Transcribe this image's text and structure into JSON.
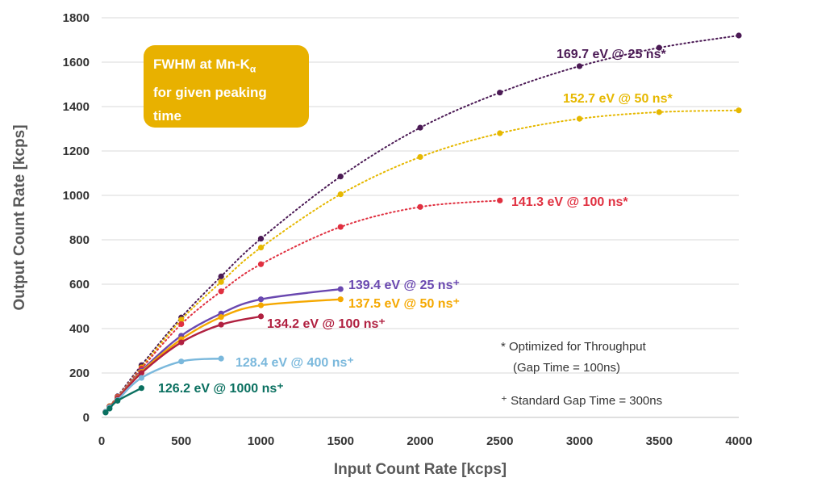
{
  "infobox": {
    "line1": "FWHM at Mn-K",
    "line1_sub": "α",
    "line2": "for given peaking",
    "line3": "time"
  },
  "notes": {
    "optimized": "* Optimized for Throughput",
    "gap_100": "(Gap Time = 100ns)",
    "standard": "⁺ Standard Gap Time = 300ns"
  },
  "chart_data": {
    "type": "line",
    "xlabel": "Input Count Rate [kcps]",
    "ylabel": "Output Count Rate [kcps]",
    "xlim": [
      0,
      4000
    ],
    "ylim": [
      0,
      1800
    ],
    "xticks": [
      0,
      500,
      1000,
      1500,
      2000,
      2500,
      3000,
      3500,
      4000
    ],
    "yticks": [
      0,
      200,
      400,
      600,
      800,
      1000,
      1200,
      1400,
      1600,
      1800
    ],
    "grid": "horizontal",
    "series": [
      {
        "name": "169.7 eV @ 25 ns*",
        "color": "#4b1a55",
        "style": "dotted",
        "x": [
          25,
          50,
          100,
          250,
          500,
          750,
          1000,
          1500,
          2000,
          2500,
          3000,
          3500,
          4000
        ],
        "y": [
          25,
          50,
          95,
          235,
          450,
          635,
          805,
          1085,
          1305,
          1463,
          1582,
          1665,
          1720
        ]
      },
      {
        "name": "152.7 eV @ 50 ns*",
        "color": "#e6b800",
        "style": "dotted",
        "x": [
          25,
          50,
          100,
          250,
          500,
          750,
          1000,
          1500,
          2000,
          2500,
          3000,
          3500,
          4000
        ],
        "y": [
          25,
          50,
          93,
          225,
          440,
          610,
          765,
          1005,
          1173,
          1280,
          1345,
          1375,
          1383
        ]
      },
      {
        "name": "141.3 eV @ 100 ns*",
        "color": "#e03040",
        "style": "dotted",
        "x": [
          25,
          50,
          100,
          250,
          500,
          750,
          1000,
          1500,
          2000,
          2500
        ],
        "y": [
          25,
          50,
          92,
          220,
          420,
          568,
          690,
          858,
          948,
          977
        ]
      },
      {
        "name": "139.4 eV @ 25 ns⁺",
        "color": "#6a48b0",
        "style": "solid",
        "x": [
          25,
          50,
          100,
          250,
          500,
          750,
          1000,
          1500
        ],
        "y": [
          25,
          50,
          88,
          210,
          368,
          468,
          532,
          578
        ]
      },
      {
        "name": "137.5 eV @ 50 ns⁺",
        "color": "#f5a800",
        "style": "solid",
        "x": [
          25,
          50,
          100,
          250,
          500,
          750,
          1000,
          1500
        ],
        "y": [
          25,
          50,
          86,
          205,
          352,
          452,
          505,
          532
        ]
      },
      {
        "name": "134.2 eV @ 100 ns⁺",
        "color": "#b02040",
        "style": "solid",
        "x": [
          25,
          50,
          100,
          250,
          500,
          750,
          1000
        ],
        "y": [
          25,
          48,
          84,
          200,
          338,
          418,
          455
        ]
      },
      {
        "name": "128.4 eV @ 400 ns⁺",
        "color": "#7ab8dc",
        "style": "solid",
        "x": [
          25,
          50,
          100,
          250,
          500,
          750
        ],
        "y": [
          25,
          45,
          78,
          178,
          252,
          265
        ]
      },
      {
        "name": "126.2 eV @ 1000 ns⁺",
        "color": "#0a7060",
        "style": "solid",
        "x": [
          25,
          50,
          100,
          250
        ],
        "y": [
          22,
          40,
          75,
          132
        ]
      }
    ]
  }
}
